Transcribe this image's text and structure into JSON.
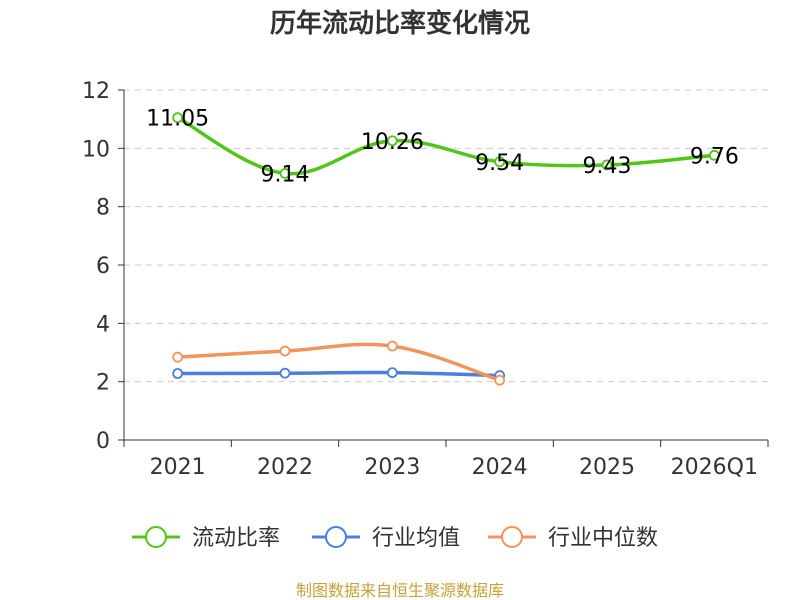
{
  "chart_data": {
    "type": "line",
    "title": "历年流动比率变化情况",
    "categories": [
      "2021",
      "2022",
      "2023",
      "2024",
      "2025",
      "2026Q1"
    ],
    "ylim": [
      0,
      12
    ],
    "yticks": [
      0,
      2,
      4,
      6,
      8,
      10,
      12
    ],
    "grid": true,
    "legend_position": "bottom",
    "series": [
      {
        "name": "流动比率",
        "color": "#52c41a",
        "values": [
          11.05,
          9.14,
          10.26,
          9.54,
          9.43,
          9.76
        ],
        "labels": [
          "11.05",
          "9.14",
          "10.26",
          "9.54",
          "9.43",
          "9.76"
        ]
      },
      {
        "name": "行业均值",
        "color": "#4a7fdc",
        "values": [
          2.28,
          2.29,
          2.31,
          2.21,
          null,
          null
        ]
      },
      {
        "name": "行业中位数",
        "color": "#f4935a",
        "values": [
          2.84,
          3.05,
          3.22,
          2.05,
          null,
          null
        ]
      }
    ]
  },
  "source": "制图数据来自恒生聚源数据库"
}
